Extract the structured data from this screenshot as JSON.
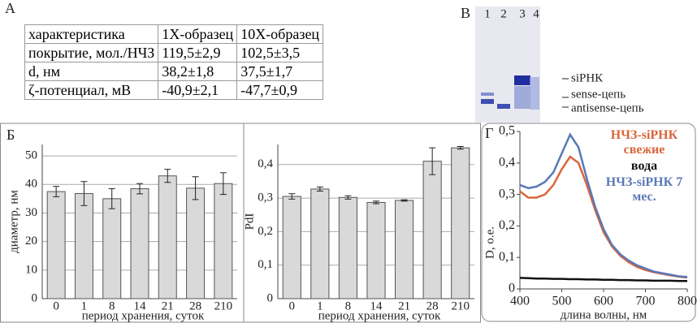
{
  "panel_a": {
    "label": "А",
    "table": {
      "header": [
        "характеристика",
        "1X-образец",
        "10X-образец"
      ],
      "rows": [
        [
          "покрытие, мол./НЧЗ",
          "119,5±2,9",
          "102,5±3,5"
        ],
        [
          "d, нм",
          "38,2±1,8",
          "37,5±1,7"
        ],
        [
          "ζ-потенциал, мВ",
          "-40,9±2,1",
          "-47,7±0,9"
        ]
      ]
    }
  },
  "panel_b": {
    "label": "В",
    "lanes": [
      "1",
      "2",
      "3",
      "4"
    ],
    "bands": [
      "siРНК",
      "sense-цепь",
      "antisense-цепь"
    ]
  },
  "chart_data": [
    {
      "type": "bar",
      "label": "Б",
      "ylabel": "диаметр, нм",
      "xlabel": "период хранения, суток",
      "categories": [
        "0",
        "1",
        "8",
        "14",
        "21",
        "28",
        "210"
      ],
      "values": [
        37.5,
        36.8,
        35,
        38.5,
        43,
        38.7,
        40.3
      ],
      "errors": [
        1.8,
        4.2,
        3.5,
        1.8,
        2.3,
        4,
        3.8
      ],
      "color": "#d9d9d9",
      "ylim": [
        0,
        54
      ],
      "yticks": [
        0,
        10,
        20,
        30,
        40,
        50
      ],
      "grid": true
    },
    {
      "type": "bar",
      "ylabel": "PdI",
      "xlabel": "период хранения, суток",
      "categories": [
        "0",
        "1",
        "8",
        "14",
        "21",
        "28",
        "210"
      ],
      "values": [
        0.305,
        0.327,
        0.302,
        0.287,
        0.293,
        0.41,
        0.45
      ],
      "errors": [
        0.008,
        0.006,
        0.005,
        0.004,
        0.002,
        0.04,
        0.004
      ],
      "color": "#d9d9d9",
      "ylim": [
        0,
        0.46
      ],
      "yticks": [
        0,
        {
          "value": 0.1,
          "label": "0,1"
        },
        {
          "value": 0.2,
          "label": "0,2"
        },
        {
          "value": 0.3,
          "label": "0,3"
        },
        {
          "value": 0.4,
          "label": "0,4"
        }
      ],
      "grid": true
    },
    {
      "type": "line",
      "label": "Г",
      "ylabel": "D, о.е.",
      "xlabel": "длина волны, нм",
      "x": [
        400,
        420,
        440,
        460,
        480,
        500,
        520,
        540,
        560,
        580,
        600,
        620,
        640,
        660,
        680,
        700,
        720,
        740,
        760,
        780,
        800
      ],
      "xlim": [
        400,
        800
      ],
      "xticks": [
        400,
        500,
        600,
        700,
        800
      ],
      "ylim": [
        0,
        0.5
      ],
      "yticks": [
        0,
        {
          "value": 0.1,
          "label": "0,1"
        },
        {
          "value": 0.2,
          "label": "0,2"
        },
        {
          "value": 0.3,
          "label": "0,3"
        },
        {
          "value": 0.4,
          "label": "0,4"
        },
        {
          "value": 0.5,
          "label": "0,5"
        }
      ],
      "series": [
        {
          "name": "НЧЗ-siРНК свежие",
          "color": "#d9663a",
          "values": [
            0.31,
            0.29,
            0.29,
            0.3,
            0.33,
            0.38,
            0.42,
            0.4,
            0.33,
            0.25,
            0.18,
            0.135,
            0.105,
            0.085,
            0.07,
            0.06,
            0.053,
            0.048,
            0.043,
            0.039,
            0.036
          ]
        },
        {
          "name": "вода",
          "color": "#111111",
          "values": [
            0.035,
            0.034,
            0.033,
            0.033,
            0.032,
            0.032,
            0.031,
            0.031,
            0.03,
            0.03,
            0.029,
            0.029,
            0.028,
            0.028,
            0.027,
            0.027,
            0.026,
            0.026,
            0.026,
            0.025,
            0.025
          ]
        },
        {
          "name": "НЧЗ-siРНК 7 мес.",
          "color": "#5a78b8",
          "values": [
            0.33,
            0.32,
            0.325,
            0.34,
            0.37,
            0.43,
            0.49,
            0.45,
            0.35,
            0.26,
            0.19,
            0.14,
            0.11,
            0.09,
            0.075,
            0.065,
            0.055,
            0.05,
            0.045,
            0.04,
            0.038
          ]
        }
      ]
    }
  ]
}
